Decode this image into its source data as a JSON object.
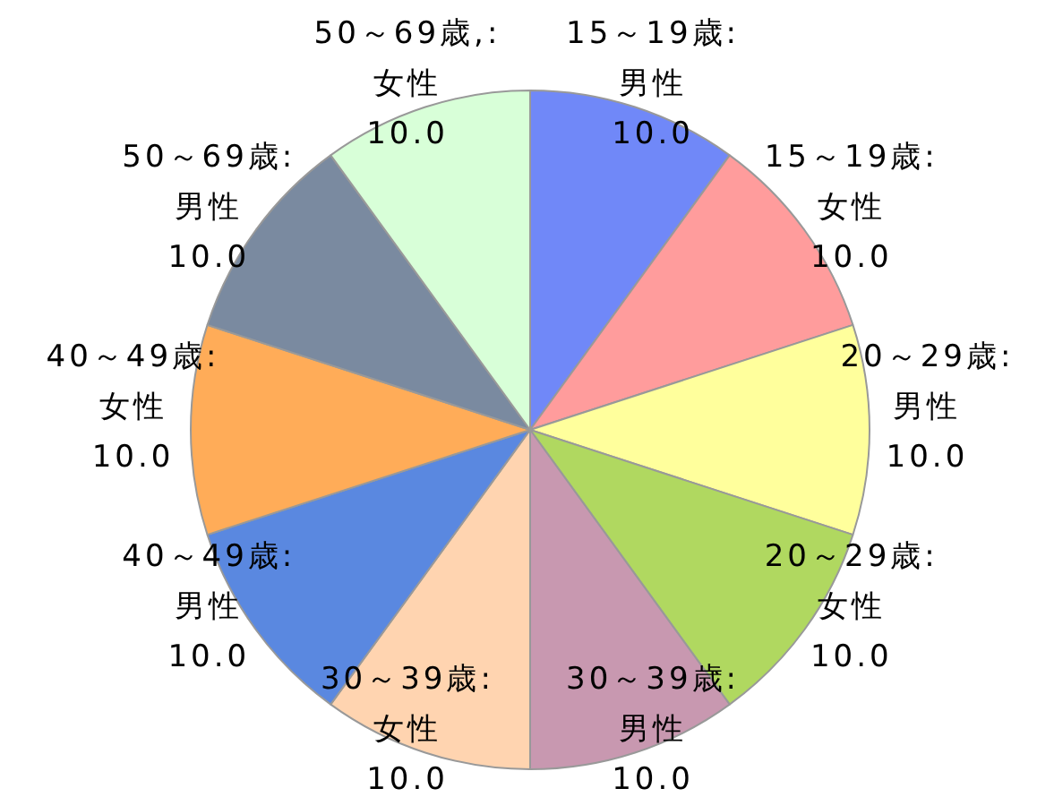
{
  "chart_data": {
    "type": "pie",
    "categories": [
      "15～19歳:\n男性",
      "15～19歳:\n女性",
      "20～29歳:\n男性",
      "20～29歳:\n女性",
      "30～39歳:\n男性",
      "30～39歳:\n女性",
      "40～49歳:\n男性",
      "40～49歳:\n女性",
      "50～69歳:\n男性",
      "50～69歳,:\n女性"
    ],
    "values": [
      10,
      10,
      10,
      10,
      10,
      10,
      10,
      10,
      10,
      10
    ],
    "value_labels": [
      "10.0",
      "10.0",
      "10.0",
      "10.0",
      "10.0",
      "10.0",
      "10.0",
      "10.0",
      "10.0",
      "10.0"
    ],
    "colors": [
      "#7088f8",
      "#ff9c9c",
      "#ffff9c",
      "#b0d860",
      "#c898b0",
      "#ffd4b0",
      "#5a88e0",
      "#ffac58",
      "#7a8aa0",
      "#d8ffd8"
    ],
    "legend": false
  }
}
